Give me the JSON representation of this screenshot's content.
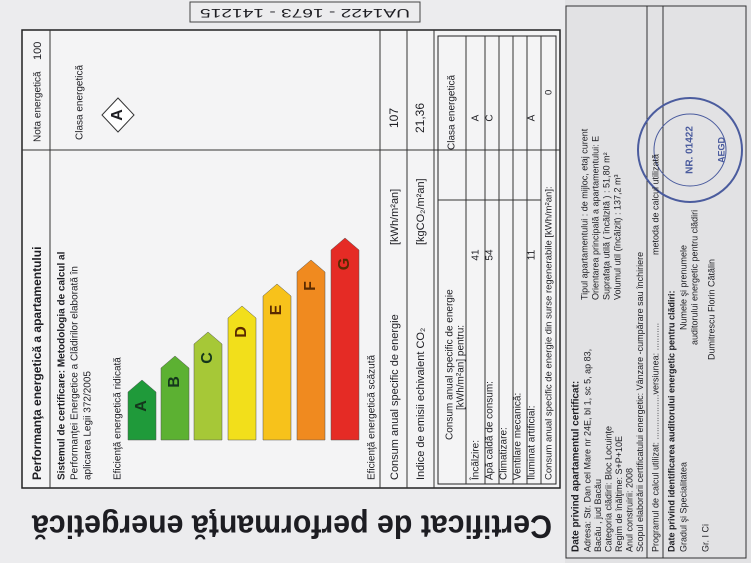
{
  "serial": "UA1422 - 1673 - 141215",
  "title": "Certificat de performanţă energetică",
  "header": {
    "section_title": "Performanţa energetică a apartamentului",
    "rating_label": "Nota energetică",
    "rating": 100,
    "class_label": "Clasa energetică",
    "class": "A"
  },
  "system": [
    "Sistemul de certificare: Metodologia de calcul al",
    "Performanţei Energetice a Clădirilor elaborată în",
    "aplicarea Legii 372/2005"
  ],
  "scale": {
    "high": "Eficienţă energetică ridicată",
    "low": "Eficienţă energetică scăzută",
    "classes": [
      "A",
      "B",
      "C",
      "D",
      "E",
      "F",
      "G"
    ]
  },
  "consumption": {
    "label": "Consum anual specific de energie",
    "unit": "[kWh/m²an]",
    "value": 107
  },
  "emissions": {
    "label": "Indice de emisii echivalent CO₂",
    "unit": "[kgCO₂/m²an]",
    "value": "21,36"
  },
  "table": {
    "header": [
      "Consum anual specific de energie",
      "[kWh/m²an] pentru:"
    ],
    "class_header": "Clasa energetică",
    "rows": [
      {
        "label": "Încălzire:",
        "value": 41,
        "class": "A"
      },
      {
        "label": "Apă caldă de consum:",
        "value": 54,
        "class": "C"
      },
      {
        "label": "Climatizare:"
      },
      {
        "label": "Ventilare mecanică:"
      },
      {
        "label": "Iluminat artificial:",
        "value": 11,
        "class": "A"
      }
    ]
  },
  "renewable": {
    "label": "Consum anual specific de energie din surse regenerabile [kWh/m²an]:",
    "value": 0
  },
  "apartment": {
    "heading": "Date privind apartamentul certificat:",
    "left": [
      "Adresa: Str. Dan cel Mare nr 24E, bl 1, sc 5, ap 83,",
      "Bacău , jud Bacău",
      "Categoria clădirii: Bloc Locuinţe",
      "Regim de înălţime: S+P+10E",
      "Anul construirii: 2008",
      "Scopul elaborării certificatului energetic: Vânzare -cumpărare sau închiriere"
    ],
    "right": [
      "Tipul apartamentului : de mijloc, etaj curent",
      "Orientarea principală a apartamentului: E",
      "Suprafaţa utilă ( încălzită ) : 51,80 m²",
      "Volumul util (încălzit) : 137,2 m³"
    ]
  },
  "software": {
    "label": "Programul de calcul utilizat: ..................versiunea: ...........",
    "method": "metoda de calcul utilizată"
  },
  "auditor": {
    "heading": "Date privind identificarea auditorului energetic pentru clădiri:",
    "grade_label": "Gradul şi Specialitatea",
    "name_label": "Numele şi prenumele",
    "name_label_2": "auditorului energetic pentru clădiri",
    "grade": "Gr. I   Ci",
    "name": "Dumitrescu Florin Cătălin"
  },
  "stamp": {
    "number": "NR. 01422",
    "org": "AEGD"
  }
}
